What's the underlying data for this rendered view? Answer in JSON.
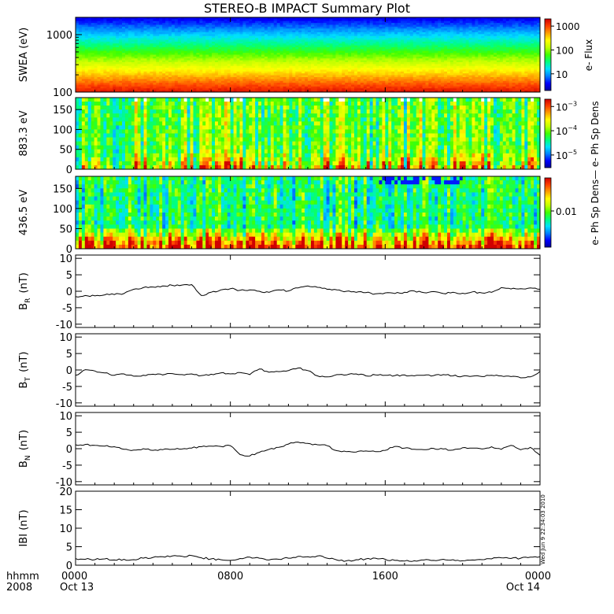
{
  "title": "STEREO-B IMPACT Summary Plot",
  "side_stamp": "Wed Jun  9 22:34:03 2010",
  "x_axis": {
    "start_day_label": "Oct 13",
    "end_day_label": "Oct 14",
    "row_label_1": "hhmm",
    "row_label_2": "2008",
    "ticks": [
      "0000",
      "0800",
      "1600",
      "0000"
    ],
    "tick_hours": [
      0,
      8,
      16,
      24
    ],
    "range_hours": [
      0,
      24
    ]
  },
  "colors": {
    "colormap": [
      "#0000a0",
      "#0000ff",
      "#0080ff",
      "#00e0ff",
      "#00ff80",
      "#40ff00",
      "#c0ff00",
      "#ffff00",
      "#ffa000",
      "#ff4000",
      "#d00000"
    ],
    "line": "#000000",
    "missing": "#ffffff"
  },
  "chart_data": [
    {
      "type": "heatmap",
      "panel": "swea",
      "ylabel": "SWEA (eV)",
      "yscale": "log",
      "ylim": [
        100,
        2000
      ],
      "yticks": [
        "100",
        "1000"
      ],
      "colorbar_label": "e- Flux",
      "colorbar_scale": "log",
      "colorbar_range": [
        2,
        2000
      ],
      "colorbar_ticks": [
        "10",
        "100",
        "1000"
      ],
      "profile_note": "flux decreases with energy; red near 100 eV, green ~300-500 eV, blue above ~1000 eV"
    },
    {
      "type": "heatmap",
      "panel": "pad_883",
      "ylabel": "883.3 eV",
      "yaxis": "pitch angle (deg)",
      "ylim": [
        0,
        180
      ],
      "yticks": [
        "0",
        "50",
        "100",
        "150"
      ],
      "colorbar_label": "e- Ph Sp Dens",
      "colorbar_scale": "log",
      "colorbar_range": [
        3e-06,
        0.002
      ],
      "colorbar_ticks": [
        "10^-5",
        "10^-4",
        "10^-3"
      ]
    },
    {
      "type": "heatmap",
      "panel": "pad_436",
      "ylabel": "436.5 eV",
      "yaxis": "pitch angle (deg)",
      "ylim": [
        0,
        180
      ],
      "yticks": [
        "0",
        "50",
        "100",
        "150"
      ],
      "colorbar_label": "e- Ph Sp Dens",
      "colorbar_scale": "log",
      "colorbar_range": [
        0.003,
        0.03
      ],
      "colorbar_ticks": [
        "0.01"
      ]
    },
    {
      "type": "line",
      "panel": "br",
      "ylabel_main": "B",
      "ylabel_sub": "R",
      "ylabel_unit": "(nT)",
      "ylim": [
        -11,
        11
      ],
      "yticks": [
        "-10",
        "-5",
        "0",
        "5",
        "10"
      ],
      "x_hours": [
        0,
        0.5,
        1,
        1.5,
        2,
        2.5,
        3,
        3.5,
        4,
        4.5,
        5,
        5.5,
        6,
        6.5,
        7,
        7.5,
        8,
        8.5,
        9,
        9.5,
        10,
        10.5,
        11,
        11.5,
        12,
        12.5,
        13,
        13.5,
        14,
        14.5,
        15,
        15.5,
        16,
        16.5,
        17,
        17.5,
        18,
        18.5,
        19,
        19.5,
        20,
        20.5,
        21,
        21.5,
        22,
        22.5,
        23,
        23.5,
        24
      ],
      "values": [
        -1.6,
        -1.3,
        -1.4,
        -1.1,
        -1.0,
        -0.7,
        0.6,
        1.1,
        1.3,
        1.6,
        1.8,
        1.9,
        2.0,
        -1.3,
        -0.3,
        0.4,
        0.8,
        0.3,
        0.4,
        0.0,
        -0.3,
        0.4,
        0.1,
        1.0,
        1.6,
        1.2,
        0.6,
        0.4,
        0.0,
        -0.3,
        -0.4,
        -0.8,
        -0.5,
        -0.7,
        -0.3,
        0.1,
        -0.4,
        -0.1,
        -0.7,
        -0.3,
        -0.6,
        -0.2,
        -0.5,
        -0.3,
        1.1,
        0.7,
        0.8,
        1.0,
        0.6
      ]
    },
    {
      "type": "line",
      "panel": "bt",
      "ylabel_main": "B",
      "ylabel_sub": "T",
      "ylabel_unit": "(nT)",
      "ylim": [
        -11,
        11
      ],
      "yticks": [
        "-10",
        "-5",
        "0",
        "5",
        "10"
      ],
      "x_hours": [
        0,
        0.5,
        1,
        1.5,
        2,
        2.5,
        3,
        3.5,
        4,
        4.5,
        5,
        5.5,
        6,
        6.5,
        7,
        7.5,
        8,
        8.5,
        9,
        9.5,
        10,
        10.5,
        11,
        11.5,
        12,
        12.5,
        13,
        13.5,
        14,
        14.5,
        15,
        15.5,
        16,
        16.5,
        17,
        17.5,
        18,
        18.5,
        19,
        19.5,
        20,
        20.5,
        21,
        21.5,
        22,
        22.5,
        23,
        23.5,
        24
      ],
      "values": [
        -1.6,
        0.1,
        -0.3,
        -0.9,
        -1.6,
        -1.2,
        -1.9,
        -1.6,
        -1.3,
        -1.5,
        -1.1,
        -1.4,
        -1.2,
        -1.7,
        -1.3,
        -0.9,
        -1.2,
        -0.8,
        -1.4,
        0.3,
        -0.7,
        -0.5,
        -0.2,
        0.6,
        -0.2,
        -1.8,
        -2.1,
        -1.4,
        -1.5,
        -1.2,
        -1.8,
        -1.5,
        -1.6,
        -1.7,
        -1.5,
        -1.8,
        -1.6,
        -1.7,
        -1.4,
        -1.8,
        -1.9,
        -1.9,
        -2.0,
        -1.6,
        -1.8,
        -2.0,
        -2.4,
        -2.1,
        -0.4
      ]
    },
    {
      "type": "line",
      "panel": "bn",
      "ylabel_main": "B",
      "ylabel_sub": "N",
      "ylabel_unit": "(nT)",
      "ylim": [
        -11,
        11
      ],
      "yticks": [
        "-10",
        "-5",
        "0",
        "5",
        "10"
      ],
      "x_hours": [
        0,
        0.5,
        1,
        1.5,
        2,
        2.5,
        3,
        3.5,
        4,
        4.5,
        5,
        5.5,
        6,
        6.5,
        7,
        7.5,
        8,
        8.5,
        9,
        9.5,
        10,
        10.5,
        11,
        11.5,
        12,
        12.5,
        13,
        13.5,
        14,
        14.5,
        15,
        15.5,
        16,
        16.5,
        17,
        17.5,
        18,
        18.5,
        19,
        19.5,
        20,
        20.5,
        21,
        21.5,
        22,
        22.5,
        23,
        23.5,
        24
      ],
      "values": [
        1.2,
        1.3,
        1.0,
        0.8,
        0.6,
        -0.2,
        -0.4,
        0.0,
        -0.5,
        -0.3,
        -0.2,
        -0.1,
        0.2,
        0.6,
        0.8,
        0.7,
        0.9,
        -1.8,
        -2.2,
        -1.1,
        -0.2,
        0.4,
        1.4,
        2.0,
        1.6,
        1.2,
        0.9,
        -0.6,
        -0.9,
        -1.0,
        -0.7,
        -0.9,
        -0.5,
        0.7,
        0.2,
        -0.2,
        -0.3,
        0.1,
        -0.1,
        -0.4,
        0.3,
        0.2,
        -0.1,
        0.6,
        -0.2,
        1.0,
        -0.3,
        0.4,
        -2.0
      ]
    },
    {
      "type": "line",
      "panel": "bmag",
      "ylabel_main": "IBI",
      "ylabel_unit": "(nT)",
      "ylim": [
        0,
        20
      ],
      "yticks": [
        "0",
        "5",
        "10",
        "15",
        "20"
      ],
      "x_hours": [
        0,
        0.5,
        1,
        1.5,
        2,
        2.5,
        3,
        3.5,
        4,
        4.5,
        5,
        5.5,
        6,
        6.5,
        7,
        7.5,
        8,
        8.5,
        9,
        9.5,
        10,
        10.5,
        11,
        11.5,
        12,
        12.5,
        13,
        13.5,
        14,
        14.5,
        15,
        15.5,
        16,
        16.5,
        17,
        17.5,
        18,
        18.5,
        19,
        19.5,
        20,
        20.5,
        21,
        21.5,
        22,
        22.5,
        23,
        23.5,
        24
      ],
      "values": [
        1.8,
        1.6,
        1.5,
        1.7,
        1.4,
        1.6,
        1.5,
        1.9,
        2.1,
        2.3,
        2.5,
        2.4,
        2.6,
        2.0,
        1.7,
        1.5,
        1.3,
        1.8,
        2.2,
        1.9,
        1.4,
        1.6,
        1.9,
        2.4,
        2.3,
        2.5,
        1.9,
        1.4,
        1.2,
        1.5,
        1.7,
        1.9,
        1.6,
        1.3,
        1.1,
        1.2,
        1.4,
        1.3,
        1.6,
        1.5,
        1.2,
        1.4,
        1.5,
        1.7,
        2.0,
        1.8,
        1.9,
        2.2,
        2.3
      ]
    }
  ]
}
